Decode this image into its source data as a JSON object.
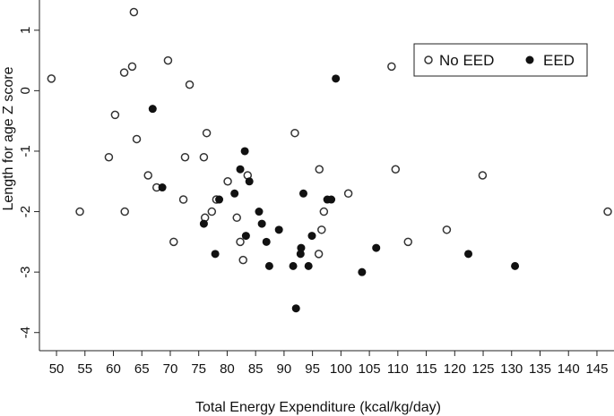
{
  "chart_data": {
    "type": "scatter",
    "xlabel": "Total Energy Expenditure (kcal/kg/day)",
    "ylabel": "Length for age Z score",
    "xlim": [
      47,
      148
    ],
    "ylim": [
      -4.3,
      1.5
    ],
    "x_ticks": [
      50,
      55,
      60,
      65,
      70,
      75,
      80,
      85,
      90,
      95,
      100,
      105,
      110,
      115,
      120,
      125,
      130,
      135,
      140,
      145
    ],
    "y_ticks": [
      1,
      0,
      -1,
      -2,
      -3,
      -4
    ],
    "legend_position": "top-right",
    "grid": false,
    "series": [
      {
        "name": "No EED",
        "marker": "open-circle",
        "color": "#333333",
        "points": [
          {
            "x": 49.1,
            "y": 0.2
          },
          {
            "x": 54.1,
            "y": -2.0
          },
          {
            "x": 59.2,
            "y": -1.1
          },
          {
            "x": 60.3,
            "y": -0.4
          },
          {
            "x": 61.9,
            "y": 0.3
          },
          {
            "x": 62.0,
            "y": -2.0
          },
          {
            "x": 63.3,
            "y": 0.4
          },
          {
            "x": 63.6,
            "y": 1.3
          },
          {
            "x": 64.1,
            "y": -0.8
          },
          {
            "x": 66.1,
            "y": -1.4
          },
          {
            "x": 67.6,
            "y": -1.6
          },
          {
            "x": 69.6,
            "y": 0.5
          },
          {
            "x": 70.6,
            "y": -2.5
          },
          {
            "x": 72.3,
            "y": -1.8
          },
          {
            "x": 72.6,
            "y": -1.1
          },
          {
            "x": 73.4,
            "y": 0.1
          },
          {
            "x": 75.9,
            "y": -1.1
          },
          {
            "x": 76.1,
            "y": -2.1
          },
          {
            "x": 76.4,
            "y": -0.7
          },
          {
            "x": 77.3,
            "y": -2.0
          },
          {
            "x": 78.1,
            "y": -1.8
          },
          {
            "x": 80.1,
            "y": -1.5
          },
          {
            "x": 81.7,
            "y": -2.1
          },
          {
            "x": 82.3,
            "y": -2.5
          },
          {
            "x": 82.8,
            "y": -2.8
          },
          {
            "x": 83.6,
            "y": -1.4
          },
          {
            "x": 91.9,
            "y": -0.7
          },
          {
            "x": 96.1,
            "y": -2.7
          },
          {
            "x": 96.2,
            "y": -1.3
          },
          {
            "x": 96.6,
            "y": -2.3
          },
          {
            "x": 97.0,
            "y": -2.0
          },
          {
            "x": 101.3,
            "y": -1.7
          },
          {
            "x": 108.9,
            "y": 0.4
          },
          {
            "x": 109.6,
            "y": -1.3
          },
          {
            "x": 111.8,
            "y": -2.5
          },
          {
            "x": 118.6,
            "y": -2.3
          },
          {
            "x": 124.9,
            "y": -1.4
          },
          {
            "x": 146.9,
            "y": -2.0
          }
        ]
      },
      {
        "name": "EED",
        "marker": "filled-circle",
        "color": "#111111",
        "points": [
          {
            "x": 66.9,
            "y": -0.3
          },
          {
            "x": 68.6,
            "y": -1.6
          },
          {
            "x": 75.9,
            "y": -2.2
          },
          {
            "x": 77.9,
            "y": -2.7
          },
          {
            "x": 78.6,
            "y": -1.8
          },
          {
            "x": 81.3,
            "y": -1.7
          },
          {
            "x": 82.3,
            "y": -1.3
          },
          {
            "x": 83.1,
            "y": -1.0
          },
          {
            "x": 83.3,
            "y": -2.4
          },
          {
            "x": 83.9,
            "y": -1.5
          },
          {
            "x": 85.6,
            "y": -2.0
          },
          {
            "x": 86.1,
            "y": -2.2
          },
          {
            "x": 86.9,
            "y": -2.5
          },
          {
            "x": 87.4,
            "y": -2.9
          },
          {
            "x": 89.1,
            "y": -2.3
          },
          {
            "x": 91.6,
            "y": -2.9
          },
          {
            "x": 92.1,
            "y": -3.6
          },
          {
            "x": 92.9,
            "y": -2.7
          },
          {
            "x": 93.0,
            "y": -2.6
          },
          {
            "x": 93.4,
            "y": -1.7
          },
          {
            "x": 94.3,
            "y": -2.9
          },
          {
            "x": 94.9,
            "y": -2.4
          },
          {
            "x": 97.6,
            "y": -1.8
          },
          {
            "x": 98.3,
            "y": -1.8
          },
          {
            "x": 99.1,
            "y": 0.2
          },
          {
            "x": 103.7,
            "y": -3.0
          },
          {
            "x": 106.2,
            "y": -2.6
          },
          {
            "x": 122.4,
            "y": -2.7
          },
          {
            "x": 130.6,
            "y": -2.9
          }
        ]
      }
    ]
  }
}
